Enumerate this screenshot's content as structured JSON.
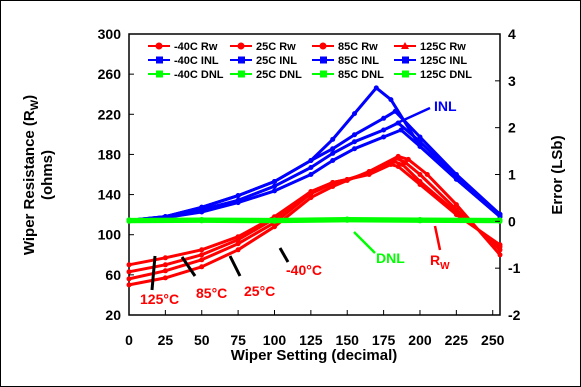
{
  "chart_data": {
    "type": "line",
    "xlabel": "Wiper Setting (decimal)",
    "ylabel_left": "Wiper Resistance (R",
    "ylabel_left_sub": "W",
    "ylabel_left_close": ")",
    "ylabel_left_unit": "(ohms)",
    "ylabel_right": "Error (LSb)",
    "xlim": [
      0,
      255
    ],
    "ylim_left": [
      20,
      300
    ],
    "ylim_right": [
      -2,
      4
    ],
    "x_ticks": [
      "0",
      "25",
      "50",
      "75",
      "100",
      "125",
      "150",
      "175",
      "200",
      "225",
      "250"
    ],
    "y_left_ticks": [
      "20",
      "60",
      "100",
      "140",
      "180",
      "220",
      "260",
      "300"
    ],
    "y_right_ticks": [
      "-2",
      "-1",
      "0",
      "1",
      "2",
      "3",
      "4"
    ],
    "colors": {
      "rw": "#ff0000",
      "inl": "#0000ff",
      "dnl": "#00ff00"
    },
    "legend": [
      [
        "-40C Rw",
        "25C Rw",
        "85C Rw",
        "125C Rw"
      ],
      [
        "-40C INL",
        "25C INL",
        "85C INL",
        "125C INL"
      ],
      [
        "-40C DNL",
        "25C DNL",
        "85C DNL",
        "125C DNL"
      ]
    ],
    "series": [
      {
        "name": "-40C Rw",
        "group": "rw",
        "x": [
          0,
          25,
          50,
          75,
          100,
          125,
          140,
          150,
          165,
          180,
          185,
          200,
          225,
          255
        ],
        "y": [
          70,
          77,
          85,
          98,
          118,
          143,
          152,
          155,
          160,
          170,
          168,
          150,
          120,
          90
        ]
      },
      {
        "name": "25C Rw",
        "group": "rw",
        "x": [
          0,
          25,
          50,
          75,
          100,
          125,
          140,
          150,
          165,
          182,
          188,
          200,
          225,
          255
        ],
        "y": [
          63,
          70,
          80,
          95,
          116,
          143,
          152,
          155,
          161,
          173,
          170,
          153,
          122,
          88
        ]
      },
      {
        "name": "85C Rw",
        "group": "rw",
        "x": [
          0,
          25,
          50,
          75,
          100,
          125,
          140,
          150,
          165,
          184,
          190,
          200,
          225,
          255
        ],
        "y": [
          56,
          64,
          75,
          91,
          112,
          141,
          151,
          155,
          162,
          176,
          172,
          160,
          125,
          85
        ]
      },
      {
        "name": "125C Rw",
        "group": "rw",
        "x": [
          0,
          25,
          50,
          75,
          100,
          125,
          140,
          150,
          165,
          185,
          192,
          205,
          225,
          255
        ],
        "y": [
          50,
          57,
          68,
          85,
          108,
          137,
          148,
          154,
          163,
          178,
          175,
          160,
          130,
          80
        ]
      },
      {
        "name": "-40C INL",
        "group": "inl",
        "x": [
          0,
          25,
          50,
          75,
          100,
          125,
          140,
          155,
          170,
          180,
          200,
          225,
          255
        ],
        "y": [
          0.02,
          0.1,
          0.3,
          0.55,
          0.85,
          1.3,
          1.75,
          2.3,
          2.85,
          2.6,
          1.6,
          0.9,
          0.1
        ]
      },
      {
        "name": "25C INL",
        "group": "inl",
        "x": [
          0,
          25,
          50,
          75,
          100,
          125,
          140,
          155,
          175,
          183,
          200,
          225,
          255
        ],
        "y": [
          0.02,
          0.1,
          0.3,
          0.55,
          0.85,
          1.3,
          1.55,
          1.85,
          2.2,
          2.35,
          1.8,
          1.0,
          0.15
        ]
      },
      {
        "name": "85C INL",
        "group": "inl",
        "x": [
          0,
          25,
          50,
          75,
          100,
          125,
          140,
          155,
          175,
          185,
          200,
          225,
          255
        ],
        "y": [
          0.02,
          0.1,
          0.25,
          0.45,
          0.75,
          1.15,
          1.45,
          1.7,
          1.95,
          2.1,
          1.7,
          0.95,
          0.15
        ]
      },
      {
        "name": "125C INL",
        "group": "inl",
        "x": [
          0,
          25,
          50,
          75,
          100,
          125,
          140,
          155,
          175,
          187,
          200,
          225,
          255
        ],
        "y": [
          0.02,
          0.08,
          0.2,
          0.4,
          0.65,
          1.0,
          1.3,
          1.55,
          1.8,
          1.95,
          1.6,
          0.9,
          0.1
        ]
      },
      {
        "name": "-40C DNL",
        "group": "dnl",
        "x": [
          0,
          50,
          100,
          150,
          200,
          255
        ],
        "y": [
          0.03,
          0.04,
          0.03,
          0.05,
          0.04,
          0.03
        ]
      },
      {
        "name": "25C DNL",
        "group": "dnl",
        "x": [
          0,
          50,
          100,
          150,
          200,
          255
        ],
        "y": [
          0.02,
          0.03,
          0.02,
          0.04,
          0.03,
          0.02
        ]
      },
      {
        "name": "85C DNL",
        "group": "dnl",
        "x": [
          0,
          50,
          100,
          150,
          200,
          255
        ],
        "y": [
          0.01,
          0.02,
          0.01,
          0.03,
          0.02,
          0.01
        ]
      },
      {
        "name": "125C DNL",
        "group": "dnl",
        "x": [
          0,
          50,
          100,
          150,
          200,
          255
        ],
        "y": [
          0.0,
          0.01,
          0.0,
          0.02,
          0.01,
          0.0
        ]
      }
    ],
    "annotations": {
      "inl": "INL",
      "dnl": "DNL",
      "rw": "R",
      "rw_sub": "W",
      "t125": "125°C",
      "t85": "85°C",
      "t25": "25°C",
      "tm40": "-40°C"
    }
  }
}
